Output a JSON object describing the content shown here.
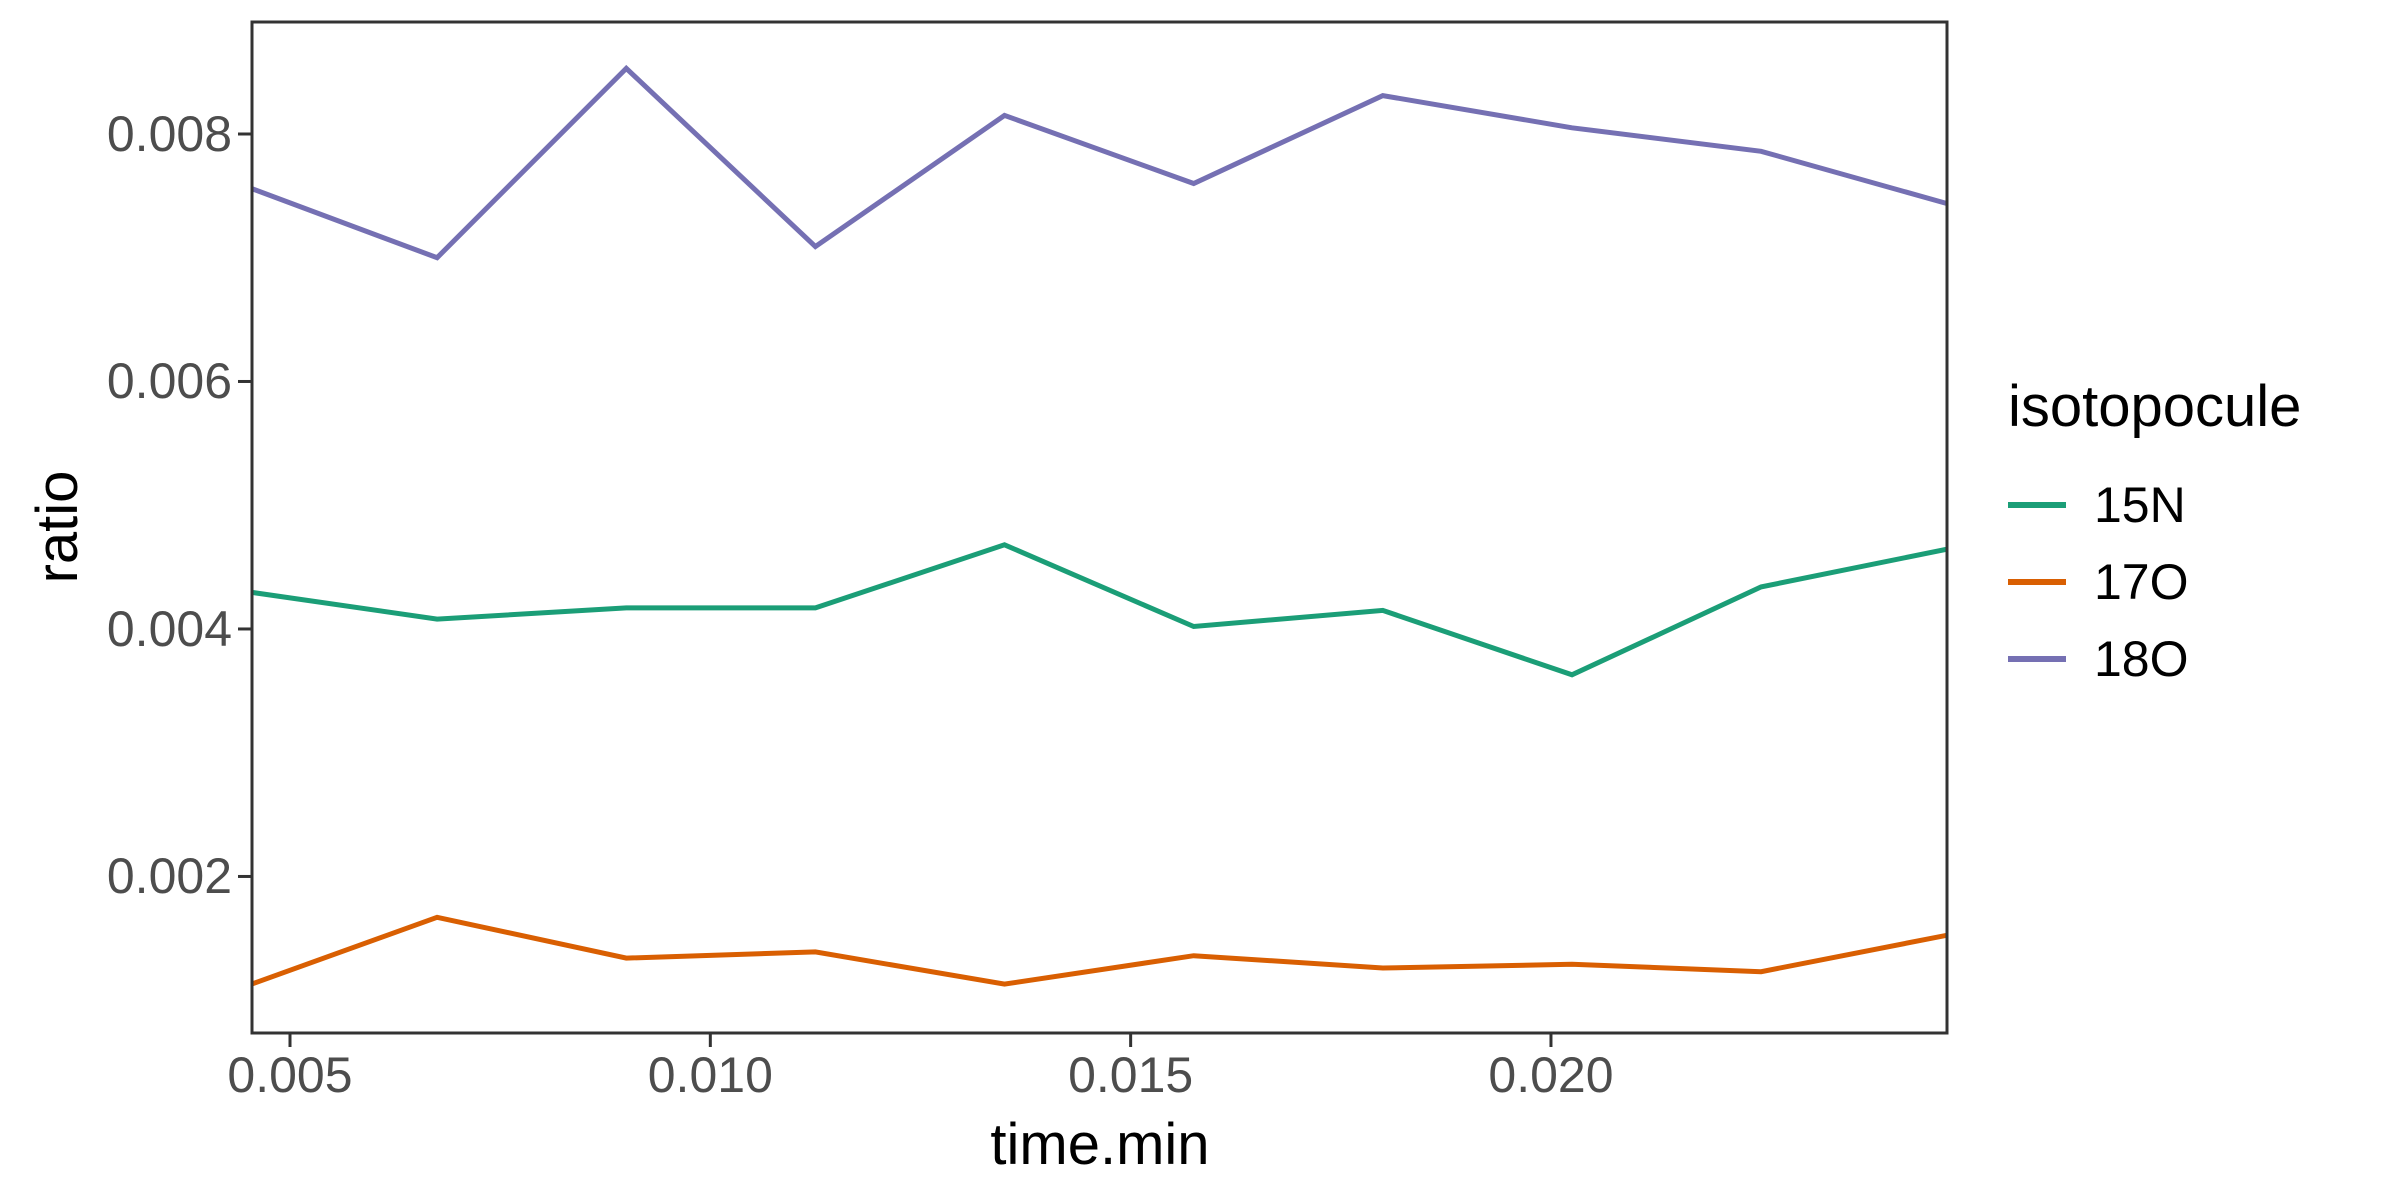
{
  "figure": {
    "background": "#ffffff",
    "panel_border_color": "#333333",
    "tick_mark_color": "#333333",
    "tick_label_color": "#4d4d4d",
    "line_width": 5
  },
  "chart_data": {
    "type": "line",
    "title": "",
    "xlabel": "time.min",
    "ylabel": "ratio",
    "grid": false,
    "legend": {
      "title": "isotopocule",
      "position": "right"
    },
    "xlim": [
      0.004548,
      0.024711
    ],
    "ylim": [
      0.000735,
      0.008905
    ],
    "x_ticks": {
      "values": [
        0.005,
        0.01,
        0.015,
        0.02
      ],
      "labels": [
        "0.005",
        "0.010",
        "0.015",
        "0.020"
      ]
    },
    "y_ticks": {
      "values": [
        0.002,
        0.004,
        0.006,
        0.008
      ],
      "labels": [
        "0.002",
        "0.004",
        "0.006",
        "0.008"
      ]
    },
    "x": [
      0.0045,
      0.00675,
      0.009,
      0.01125,
      0.0135,
      0.01575,
      0.018,
      0.02025,
      0.0225,
      0.02475
    ],
    "series": [
      {
        "name": "15N",
        "color": "#1B9E77",
        "values": [
          0.0043,
          0.00408,
          0.00417,
          0.00417,
          0.00468,
          0.00402,
          0.00415,
          0.00363,
          0.00434,
          0.00465
        ]
      },
      {
        "name": "17O",
        "color": "#D95F02",
        "values": [
          0.00112,
          0.00167,
          0.00134,
          0.00139,
          0.00113,
          0.00136,
          0.00126,
          0.00129,
          0.00123,
          0.00153
        ]
      },
      {
        "name": "18O",
        "color": "#7570B3",
        "values": [
          0.00757,
          0.007,
          0.00853,
          0.00709,
          0.00815,
          0.0076,
          0.00831,
          0.00805,
          0.00786,
          0.00743
        ]
      }
    ]
  }
}
